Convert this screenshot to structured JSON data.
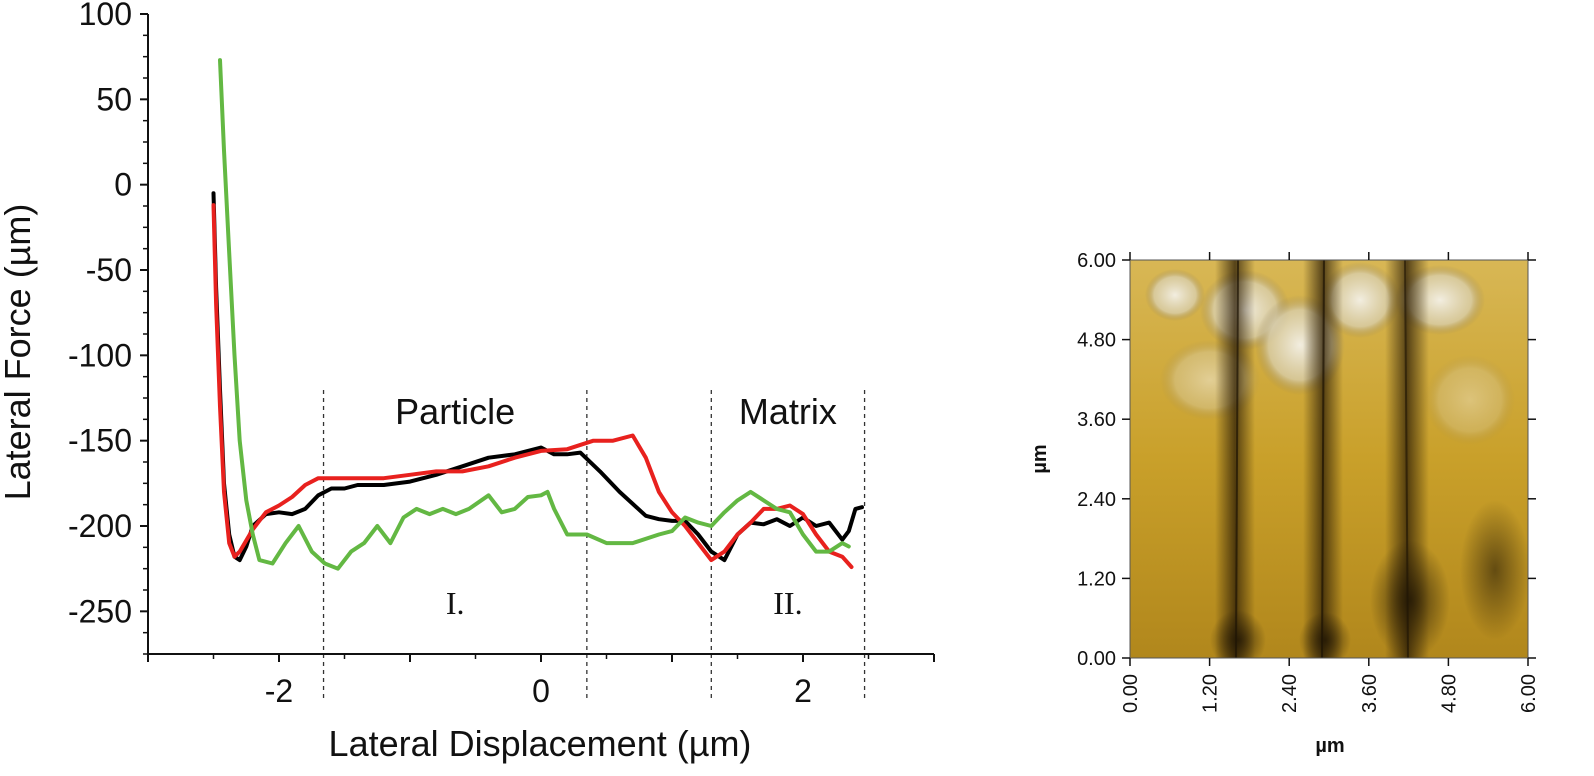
{
  "chart_data": [
    {
      "type": "line",
      "title": "",
      "xlabel": "Lateral Displacement (µm)",
      "ylabel": "Lateral Force (µm)",
      "xlim": [
        -3.0,
        3.0
      ],
      "ylim": [
        -275,
        100
      ],
      "x_ticks": [
        -2,
        0,
        2
      ],
      "y_ticks": [
        100,
        50,
        0,
        -50,
        -100,
        -150,
        -200,
        -250
      ],
      "grid": false,
      "regions": [
        {
          "label": "Particle",
          "roman": "I.",
          "x_start": -1.66,
          "x_end": 0.35
        },
        {
          "label": "Matrix",
          "roman": "II.",
          "x_start": 1.3,
          "x_end": 2.47
        }
      ],
      "series": [
        {
          "color": "#000000",
          "x": [
            -2.5,
            -2.48,
            -2.45,
            -2.42,
            -2.38,
            -2.34,
            -2.3,
            -2.25,
            -2.2,
            -2.1,
            -2.0,
            -1.9,
            -1.8,
            -1.7,
            -1.6,
            -1.5,
            -1.4,
            -1.2,
            -1.0,
            -0.8,
            -0.6,
            -0.4,
            -0.2,
            0.0,
            0.1,
            0.2,
            0.3,
            0.45,
            0.6,
            0.8,
            0.9,
            1.0,
            1.1,
            1.2,
            1.3,
            1.4,
            1.5,
            1.6,
            1.7,
            1.8,
            1.9,
            2.0,
            2.1,
            2.2,
            2.3,
            2.35,
            2.4,
            2.45
          ],
          "y": [
            -5,
            -60,
            -120,
            -175,
            -205,
            -218,
            -220,
            -212,
            -200,
            -193,
            -192,
            -193,
            -190,
            -182,
            -178,
            -178,
            -176,
            -176,
            -174,
            -170,
            -165,
            -160,
            -158,
            -154,
            -158,
            -158,
            -157,
            -168,
            -180,
            -194,
            -196,
            -197,
            -197,
            -205,
            -215,
            -220,
            -205,
            -198,
            -199,
            -196,
            -200,
            -195,
            -200,
            -198,
            -208,
            -203,
            -190,
            -189
          ]
        },
        {
          "color": "#e8211e",
          "x": [
            -2.5,
            -2.48,
            -2.45,
            -2.42,
            -2.38,
            -2.34,
            -2.3,
            -2.2,
            -2.1,
            -2.0,
            -1.9,
            -1.8,
            -1.7,
            -1.6,
            -1.4,
            -1.2,
            -1.0,
            -0.8,
            -0.6,
            -0.4,
            -0.2,
            0.0,
            0.2,
            0.4,
            0.55,
            0.7,
            0.8,
            0.9,
            1.0,
            1.1,
            1.2,
            1.3,
            1.4,
            1.5,
            1.6,
            1.7,
            1.8,
            1.9,
            2.0,
            2.1,
            2.2,
            2.3,
            2.37
          ],
          "y": [
            -12,
            -70,
            -130,
            -180,
            -210,
            -218,
            -215,
            -202,
            -192,
            -188,
            -183,
            -176,
            -172,
            -172,
            -172,
            -172,
            -170,
            -168,
            -168,
            -165,
            -160,
            -156,
            -155,
            -150,
            -150,
            -147,
            -160,
            -180,
            -192,
            -200,
            -210,
            -220,
            -215,
            -205,
            -198,
            -190,
            -190,
            -188,
            -193,
            -205,
            -215,
            -218,
            -224
          ]
        },
        {
          "color": "#63b843",
          "x": [
            -2.45,
            -2.42,
            -2.38,
            -2.34,
            -2.3,
            -2.25,
            -2.2,
            -2.15,
            -2.05,
            -1.95,
            -1.85,
            -1.75,
            -1.65,
            -1.55,
            -1.45,
            -1.35,
            -1.25,
            -1.15,
            -1.05,
            -0.95,
            -0.85,
            -0.75,
            -0.65,
            -0.55,
            -0.4,
            -0.3,
            -0.2,
            -0.1,
            0.0,
            0.05,
            0.1,
            0.2,
            0.35,
            0.5,
            0.7,
            0.9,
            1.0,
            1.1,
            1.2,
            1.3,
            1.4,
            1.5,
            1.6,
            1.7,
            1.8,
            1.9,
            2.0,
            2.1,
            2.2,
            2.3,
            2.35
          ],
          "y": [
            73,
            20,
            -40,
            -100,
            -150,
            -185,
            -205,
            -220,
            -222,
            -210,
            -200,
            -215,
            -222,
            -225,
            -215,
            -210,
            -200,
            -210,
            -195,
            -190,
            -193,
            -190,
            -193,
            -190,
            -182,
            -192,
            -190,
            -183,
            -182,
            -180,
            -190,
            -205,
            -205,
            -210,
            -210,
            -205,
            -203,
            -195,
            -198,
            -200,
            -192,
            -185,
            -180,
            -185,
            -190,
            -192,
            -205,
            -215,
            -215,
            -210,
            -212
          ]
        }
      ]
    },
    {
      "type": "heatmap",
      "xlabel": "µm",
      "ylabel": "µm",
      "x_ticks": [
        "0.00",
        "1.20",
        "2.40",
        "3.60",
        "4.80",
        "6.00"
      ],
      "y_ticks": [
        "0.00",
        "1.20",
        "2.40",
        "3.60",
        "4.80",
        "6.00"
      ],
      "colormap": [
        "#2b1c05",
        "#b58a1a",
        "#e0c35a",
        "#f2f0e6"
      ]
    }
  ]
}
